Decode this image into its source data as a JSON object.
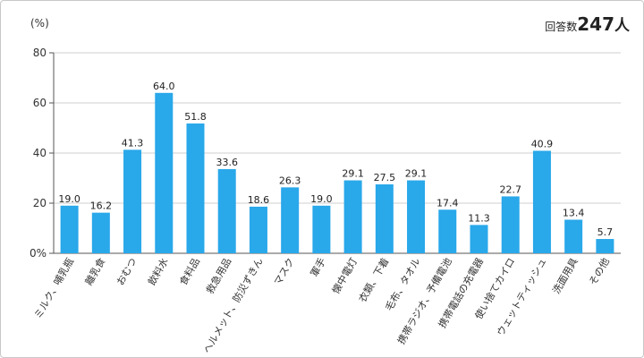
{
  "header": {
    "unit": "(%)",
    "respondents_label": "回答数",
    "respondents_count": "247",
    "respondents_unit": "人"
  },
  "colors": {
    "bar": "#29a8ea",
    "grid": "#cfcfcf",
    "axis": "#555555"
  },
  "chart_data": {
    "type": "bar",
    "title": "",
    "xlabel": "",
    "ylabel": "(%)",
    "ylim": [
      0,
      80
    ],
    "yticks": [
      0,
      20,
      40,
      60,
      80
    ],
    "ytick_labels": [
      "0%",
      "20",
      "40",
      "60",
      "80"
    ],
    "grid": true,
    "categories": [
      "ミルク、哺乳瓶",
      "離乳食",
      "おむつ",
      "飲料水",
      "食料品",
      "救急用品",
      "ヘルメット、防災ずきん",
      "マスク",
      "軍手",
      "懐中電灯",
      "衣類、下着",
      "毛布、タオル",
      "携帯ラジオ、予備電池",
      "携帯電話の充電器",
      "使い捨てカイロ",
      "ウェットティッシュ",
      "洗面用具",
      "その他"
    ],
    "values": [
      19.0,
      16.2,
      41.3,
      64.0,
      51.8,
      33.6,
      18.6,
      26.3,
      19.0,
      29.1,
      27.5,
      29.1,
      17.4,
      11.3,
      22.7,
      40.9,
      13.4,
      5.7
    ],
    "value_labels": [
      "19.0",
      "16.2",
      "41.3",
      "64.0",
      "51.8",
      "33.6",
      "18.6",
      "26.3",
      "19.0",
      "29.1",
      "27.5",
      "29.1",
      "17.4",
      "11.3",
      "22.7",
      "40.9",
      "13.4",
      "5.7"
    ]
  }
}
